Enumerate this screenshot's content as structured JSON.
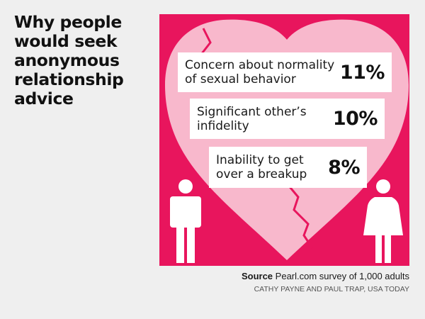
{
  "title_lines": [
    "Why people",
    "would seek",
    "anonymous",
    "relationship",
    "advice"
  ],
  "source": {
    "label": "Source",
    "text": "Pearl.com survey of 1,000 adults"
  },
  "credit": "CATHY PAYNE AND PAUL TRAP, USA TODAY",
  "colors": {
    "panel_background": "#e8155d",
    "heart": "#f8b8cc",
    "box": "#ffffff",
    "figures": "#ffffff"
  },
  "chart_data": {
    "type": "bar",
    "title": "Why people would seek anonymous relationship advice",
    "unit": "%",
    "categories": [
      [
        "Concern about normality",
        "of sexual behavior"
      ],
      [
        "Significant other’s",
        "infidelity"
      ],
      [
        "Inability to get",
        "over a breakup"
      ]
    ],
    "values": [
      11,
      10,
      8
    ],
    "value_labels": [
      "11%",
      "10%",
      "8%"
    ]
  }
}
